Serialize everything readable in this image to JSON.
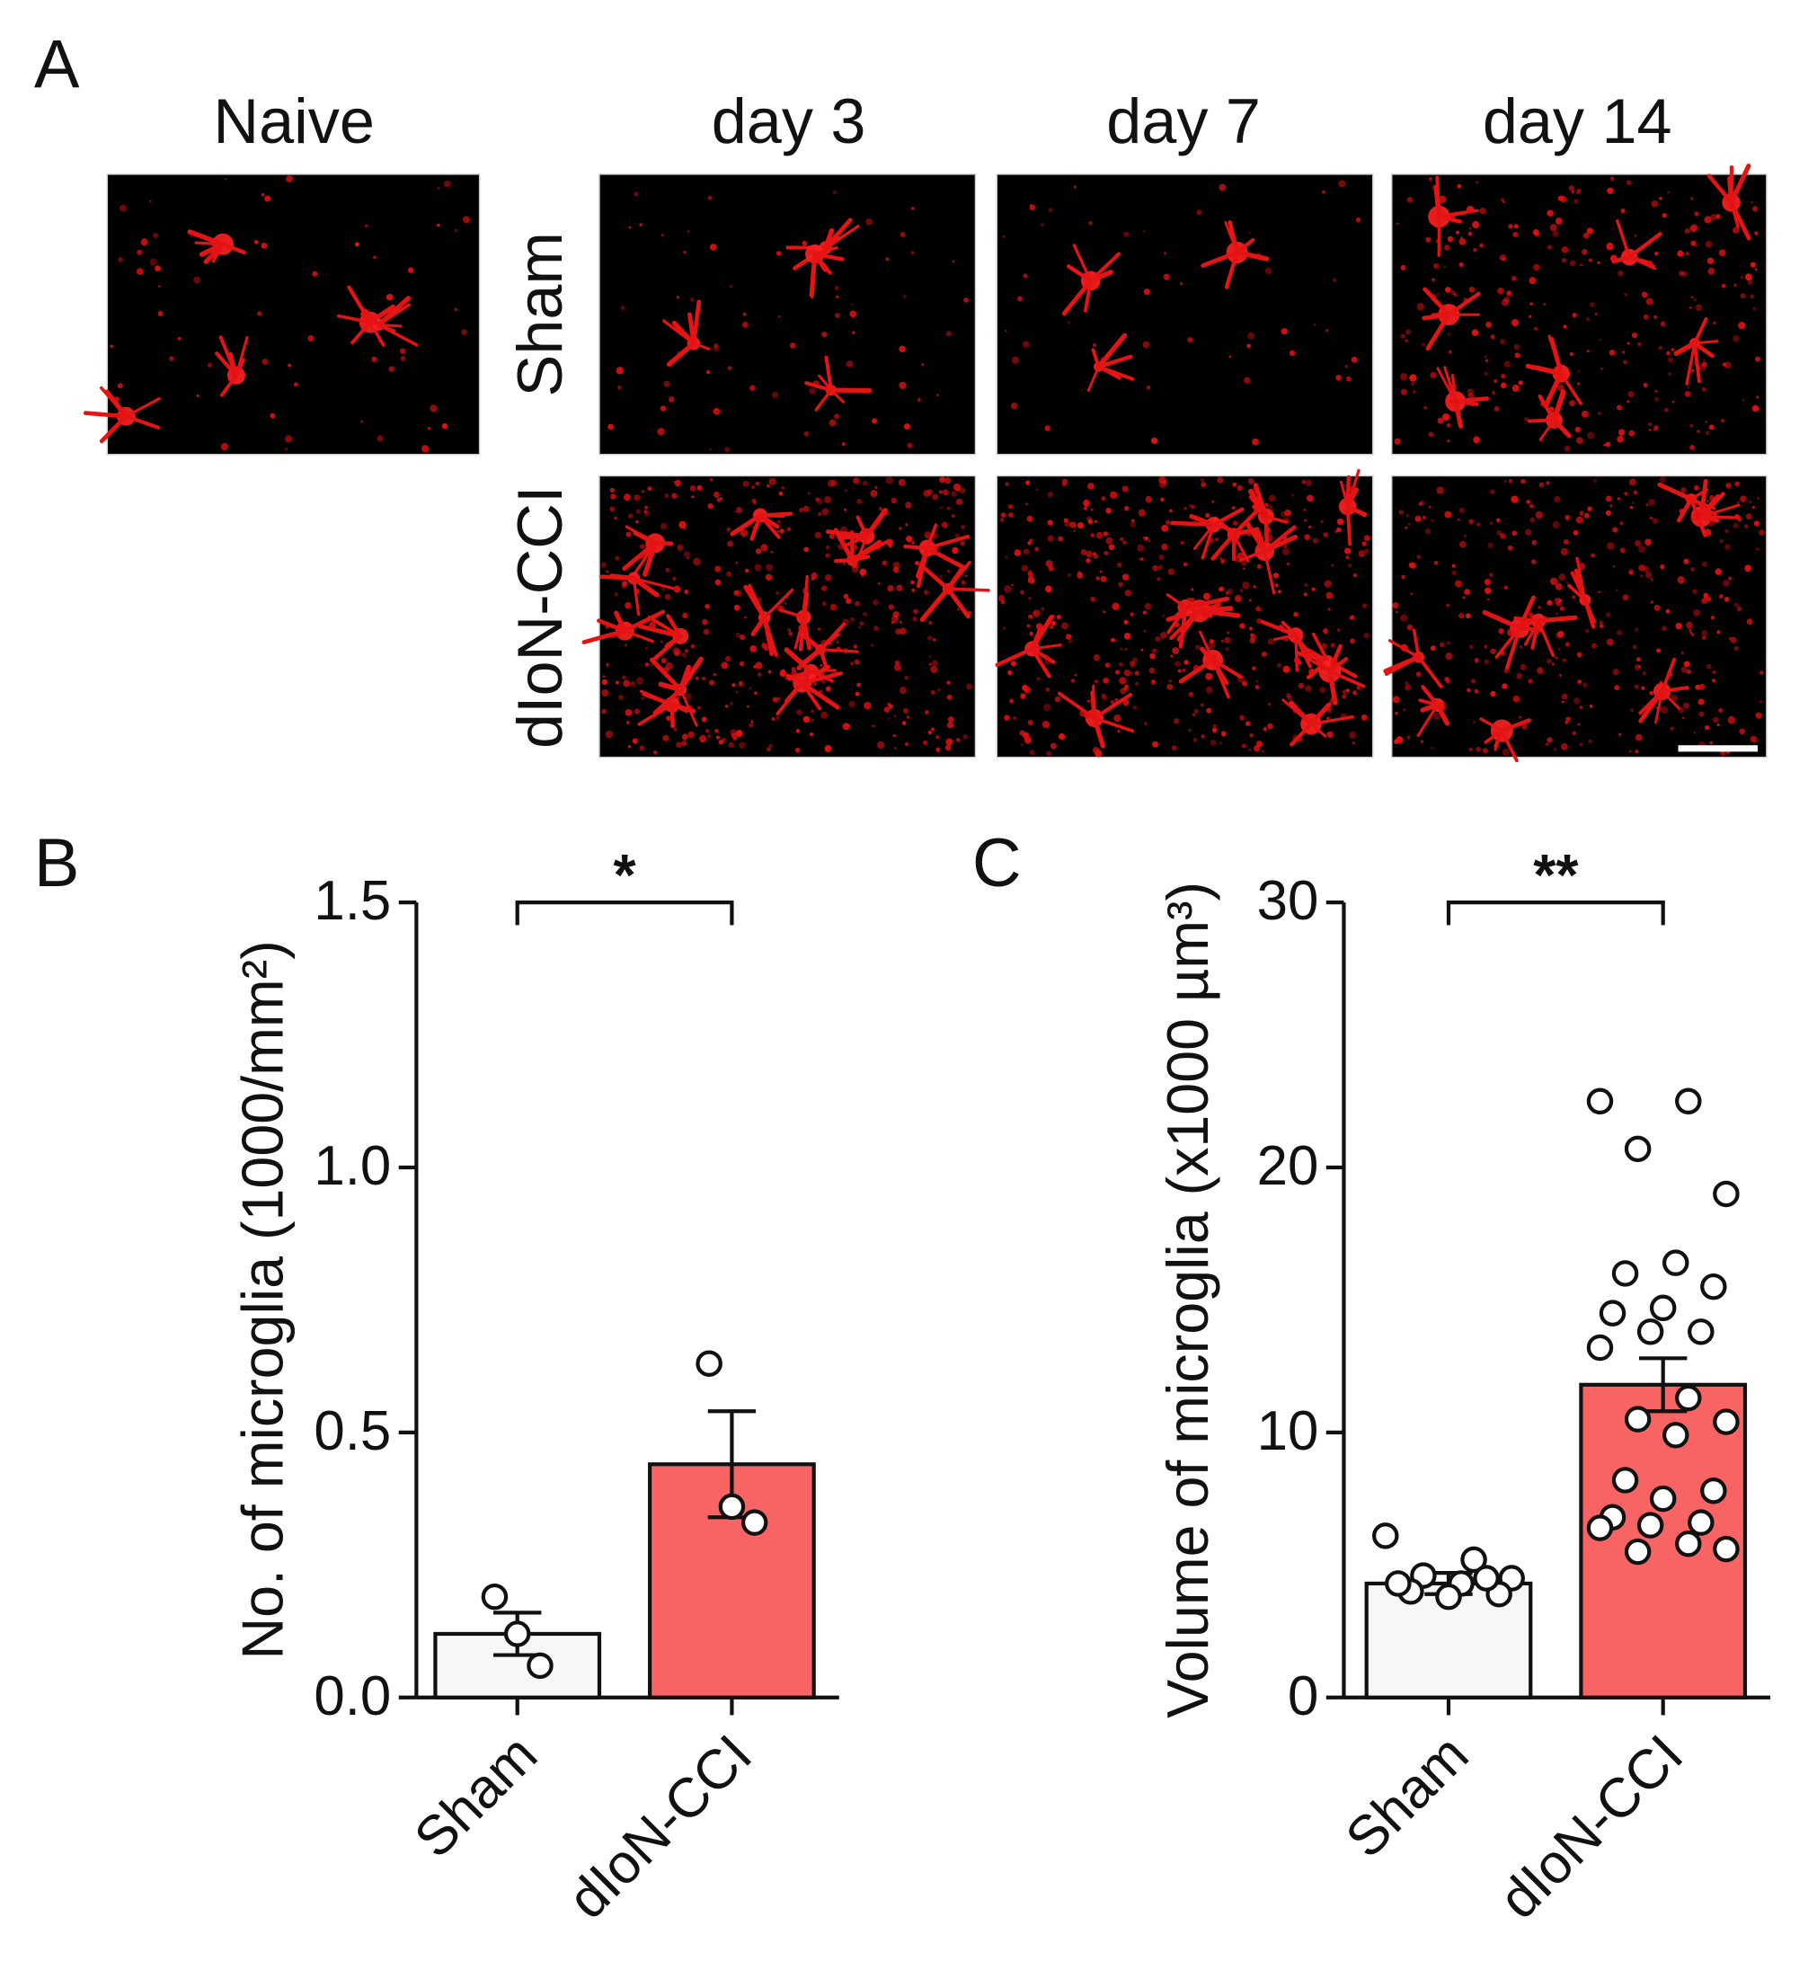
{
  "panel_a": {
    "label": "A",
    "columns": [
      "Naive",
      "day 3",
      "day 7",
      "day 14"
    ],
    "rows": [
      "Sham",
      "dIoN-CCI"
    ]
  },
  "chart_data": [
    {
      "type": "bar",
      "panel": "B",
      "y_label": "No. of microglia (1000/mm²)",
      "categories": [
        "Sham",
        "dIoN-CCI"
      ],
      "values": [
        0.12,
        0.44
      ],
      "errors": [
        0.04,
        0.1
      ],
      "colors": [
        "#f7f7f7",
        "#f86464"
      ],
      "points": [
        [
          0.19,
          0.12,
          0.06
        ],
        [
          0.63,
          0.36,
          0.33
        ]
      ],
      "annotation": "*",
      "ylim": [
        0,
        1.5
      ],
      "yticks": [
        {
          "value": 0,
          "label": "0.0"
        },
        0.5,
        {
          "value": 1,
          "label": "1.0"
        },
        1.5
      ]
    },
    {
      "type": "bar",
      "panel": "C",
      "y_label": "Volume of microglia (x1000 µm³)",
      "categories": [
        "Sham",
        "dIoN-CCI"
      ],
      "values": [
        4.3,
        11.8
      ],
      "errors": [
        0.4,
        1.0
      ],
      "colors": [
        "#f7f7f7",
        "#f86464"
      ],
      "points": [
        [
          6.1,
          5.2,
          4.6,
          4.5,
          4.3,
          4.0,
          3.9,
          3.8,
          4.3,
          4.5
        ],
        [
          22.5,
          22.5,
          20.7,
          19.0,
          16.4,
          16.0,
          15.5,
          14.7,
          14.5,
          13.8,
          13.8,
          13.2,
          11.3,
          10.5,
          10.4,
          9.9,
          8.2,
          7.8,
          7.5,
          6.8,
          6.6,
          6.5,
          6.4,
          5.8,
          5.5,
          5.6
        ]
      ],
      "annotation": "**",
      "ylim": [
        0,
        30
      ],
      "yticks": [
        0,
        10,
        20,
        30
      ]
    }
  ]
}
